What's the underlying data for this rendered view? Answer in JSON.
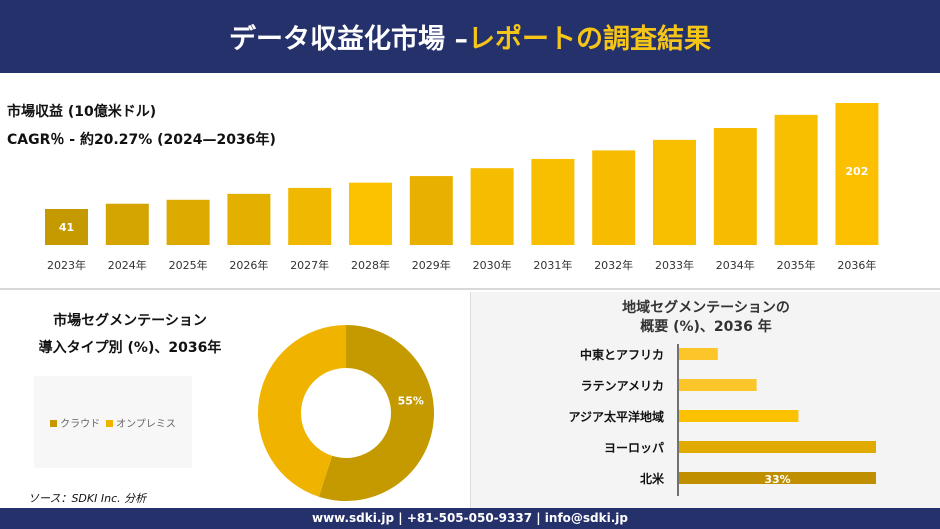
{
  "header": {
    "title_main": "データ収益化市場 –",
    "title_highlight": "レポートの調査結果"
  },
  "revenue": {
    "title": "市場収益 (10億米ドル)",
    "cagr": "CAGR％ - 約20.27% (2024—2036年)"
  },
  "chart_data": [
    {
      "type": "bar",
      "categories": [
        "2023年",
        "2024年",
        "2025年",
        "2026年",
        "2027年",
        "2028年",
        "2029年",
        "2030年",
        "2031年",
        "2032年",
        "2033年",
        "2034年",
        "2035年",
        "2036年"
      ],
      "values": [
        41,
        49,
        55,
        64,
        73,
        81,
        91,
        103,
        117,
        130,
        146,
        164,
        184,
        202
      ],
      "data_labels": {
        "0": "41",
        "13": "202"
      },
      "ylabel": "",
      "xlabel": ""
    },
    {
      "type": "pie",
      "variant": "donut",
      "title": "市場セグメンテーション 導入タイプ別 (%)、2036年",
      "categories": [
        "クラウド",
        "オンプレミス"
      ],
      "values": [
        55,
        45
      ],
      "data_labels": [
        "55%",
        ""
      ],
      "colors": [
        "#c49a00",
        "#f0b400"
      ],
      "legend": "left"
    },
    {
      "type": "bar",
      "orientation": "horizontal",
      "title": "地域セグメンテーションの 概要 (%)、2036 年",
      "categories": [
        "中東とアフリカ",
        "ラテンアメリカ",
        "アジア太平洋地域",
        "ヨーロッパ",
        "北米"
      ],
      "values": [
        6.5,
        13,
        20,
        33,
        33
      ],
      "data_labels": [
        "",
        "",
        "",
        "",
        "33%"
      ],
      "colors": [
        "#fcc62a",
        "#fcc62a",
        "#fcc200",
        "#e0aa00",
        "#bf8f00"
      ]
    }
  ],
  "segment": {
    "title1": "市場セグメンテーション",
    "title2": "導入タイプ別 (%)、2036年"
  },
  "region": {
    "title1": "地域セグメンテーションの",
    "title2": "概要 (%)、2036 年"
  },
  "source": "ソース：SDKI Inc. 分析",
  "footer": "www.sdki.jp | +81-505-050-9337 | info@sdki.jp"
}
